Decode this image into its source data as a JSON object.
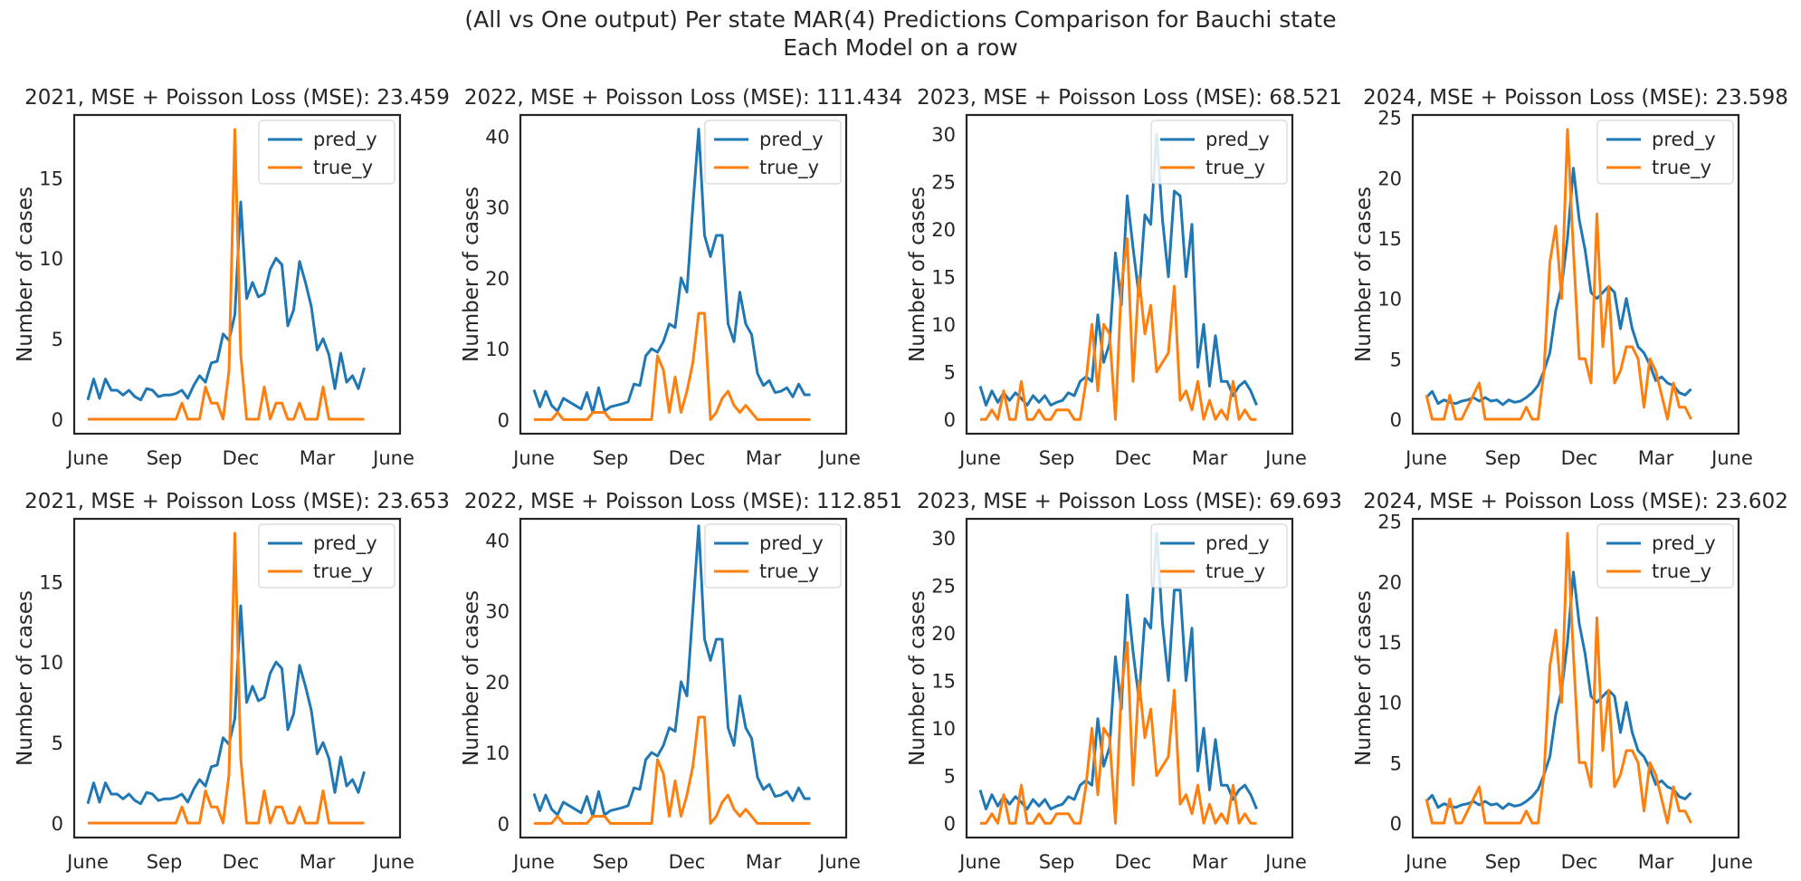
{
  "figure": {
    "suptitle_line1": "(All vs One output) Per state MAR(4) Predictions Comparison for Bauchi state",
    "suptitle_line2": "Each Model on a row"
  },
  "colors": {
    "pred": "#1f77b4",
    "true": "#ff7f0e",
    "axis": "#262626"
  },
  "chart_data": [
    {
      "type": "line",
      "title": "2021, MSE + Poisson Loss (MSE): 23.459",
      "ylabel": "Number of cases",
      "xticks": [
        "June",
        "Sep",
        "Dec",
        "Mar",
        "June"
      ],
      "yticks": [
        0,
        5,
        10,
        15
      ],
      "ylim": [
        -0.9,
        18.9
      ],
      "legend": "top-right",
      "series": [
        {
          "name": "pred_y",
          "values": [
            1.2,
            2.5,
            1.3,
            2.5,
            1.8,
            1.8,
            1.5,
            1.8,
            1.4,
            1.2,
            1.9,
            1.8,
            1.4,
            1.5,
            1.5,
            1.6,
            1.8,
            1.3,
            2.1,
            2.7,
            2.3,
            3.5,
            3.6,
            5.3,
            4.9,
            6.5,
            13.5,
            7.5,
            8.5,
            7.6,
            7.8,
            9.3,
            10.0,
            9.6,
            5.8,
            6.8,
            9.8,
            8.5,
            7.0,
            4.3,
            5.0,
            4.0,
            1.9,
            4.1,
            2.3,
            2.7,
            1.9,
            3.2
          ]
        },
        {
          "name": "true_y",
          "values": [
            0,
            0,
            0,
            0,
            0,
            0,
            0,
            0,
            0,
            0,
            0,
            0,
            0,
            0,
            0,
            0,
            1,
            0,
            0,
            0,
            2,
            1,
            1,
            0,
            3,
            18,
            4,
            0,
            0,
            0,
            2,
            0,
            1,
            1,
            0,
            0,
            1,
            0,
            0,
            0,
            2,
            0,
            0,
            0,
            0,
            0,
            0,
            0
          ]
        }
      ]
    },
    {
      "type": "line",
      "title": "2022, MSE + Poisson Loss (MSE): 111.434",
      "ylabel": "Number of cases",
      "xticks": [
        "June",
        "Sep",
        "Dec",
        "Mar",
        "June"
      ],
      "yticks": [
        0,
        10,
        20,
        30,
        40
      ],
      "ylim": [
        -2,
        43
      ],
      "legend": "top-right",
      "series": [
        {
          "name": "pred_y",
          "values": [
            4.2,
            1.8,
            4.0,
            2.0,
            1.2,
            3.0,
            2.5,
            2.0,
            1.5,
            3.8,
            1.0,
            4.5,
            1.2,
            1.8,
            2.0,
            2.2,
            2.5,
            5.0,
            4.8,
            9.0,
            10.0,
            9.5,
            11.0,
            13.5,
            13.0,
            20.0,
            18.0,
            30.0,
            41.0,
            26.0,
            23.0,
            26.0,
            26.0,
            13.5,
            11.0,
            18.0,
            13.5,
            12.0,
            6.5,
            4.8,
            5.5,
            3.8,
            4.0,
            4.5,
            3.2,
            5.0,
            3.5,
            3.5
          ]
        },
        {
          "name": "true_y",
          "values": [
            0,
            0,
            0,
            0,
            1,
            0,
            0,
            0,
            0,
            0,
            1,
            1,
            1,
            0,
            0,
            0,
            0,
            0,
            0,
            0,
            0,
            9,
            7,
            1,
            6,
            1,
            4,
            8,
            15,
            15,
            0,
            1,
            3,
            4,
            2,
            1,
            2,
            1,
            0,
            0,
            0,
            0,
            0,
            0,
            0,
            0,
            0,
            0
          ]
        }
      ]
    },
    {
      "type": "line",
      "title": "2023, MSE + Poisson Loss (MSE): 68.521",
      "ylabel": "Number of cases",
      "xticks": [
        "June",
        "Sep",
        "Dec",
        "Mar",
        "June"
      ],
      "yticks": [
        0,
        5,
        10,
        15,
        20,
        25,
        30
      ],
      "ylim": [
        -1.5,
        32
      ],
      "legend": "top-right",
      "series": [
        {
          "name": "pred_y",
          "values": [
            3.5,
            1.5,
            3.0,
            1.8,
            2.8,
            2.0,
            2.8,
            2.2,
            1.5,
            2.5,
            1.8,
            2.5,
            1.5,
            1.8,
            2.0,
            2.8,
            2.5,
            4.0,
            4.5,
            4.0,
            11.0,
            6.0,
            8.0,
            17.5,
            12.0,
            23.5,
            18.0,
            13.0,
            21.5,
            20.5,
            30.0,
            21.0,
            15.0,
            24.0,
            23.5,
            15.0,
            20.5,
            5.5,
            10.0,
            3.5,
            8.8,
            4.0,
            4.0,
            2.5,
            3.5,
            4.0,
            3.0,
            1.5
          ]
        },
        {
          "name": "true_y",
          "values": [
            0,
            0,
            1,
            0,
            3,
            0,
            0,
            4,
            0,
            0,
            1,
            0,
            0,
            1,
            1,
            1,
            0,
            0,
            4,
            10,
            3,
            10,
            9,
            0,
            14,
            19,
            4,
            15,
            9,
            12,
            5,
            6,
            7,
            14,
            2,
            3,
            1,
            4,
            0,
            2,
            0,
            1,
            0,
            4,
            0,
            1,
            0,
            0
          ]
        }
      ]
    },
    {
      "type": "line",
      "title": "2024, MSE + Poisson Loss (MSE): 23.598",
      "ylabel": "Number of cases",
      "xticks": [
        "June",
        "Sep",
        "Dec",
        "Mar",
        "June"
      ],
      "yticks": [
        0,
        5,
        10,
        15,
        20,
        25
      ],
      "ylim": [
        -1.2,
        25.2
      ],
      "legend": "top-right",
      "series": [
        {
          "name": "pred_y",
          "values": [
            1.8,
            2.3,
            1.3,
            1.6,
            1.4,
            1.3,
            1.5,
            1.6,
            1.8,
            1.5,
            1.8,
            1.5,
            1.6,
            1.2,
            1.6,
            1.4,
            1.5,
            1.8,
            2.2,
            2.8,
            4.0,
            5.5,
            9.0,
            11.0,
            15.0,
            20.8,
            16.5,
            14.0,
            10.5,
            10.0,
            10.5,
            11.0,
            10.5,
            7.5,
            10.0,
            7.5,
            6.0,
            5.5,
            4.5,
            3.2,
            3.5,
            3.0,
            2.8,
            2.2,
            2.0,
            2.5
          ]
        },
        {
          "name": "true_y",
          "values": [
            2,
            0,
            0,
            0,
            2,
            0,
            0,
            1,
            2,
            3,
            0,
            0,
            0,
            0,
            0,
            0,
            0,
            1,
            0,
            0,
            4,
            13,
            16,
            10,
            24,
            14,
            5,
            5,
            3,
            17,
            6,
            11,
            3,
            4,
            6,
            6,
            5,
            1,
            5,
            4,
            2,
            0,
            3,
            1,
            1,
            0
          ]
        }
      ]
    },
    {
      "type": "line",
      "title": "2021, MSE + Poisson Loss (MSE): 23.653",
      "ylabel": "Number of cases",
      "xticks": [
        "June",
        "Sep",
        "Dec",
        "Mar",
        "June"
      ],
      "yticks": [
        0,
        5,
        10,
        15
      ],
      "ylim": [
        -0.9,
        18.9
      ],
      "legend": "top-right",
      "series": [
        {
          "name": "pred_y",
          "values": [
            1.2,
            2.5,
            1.3,
            2.5,
            1.8,
            1.8,
            1.5,
            1.8,
            1.4,
            1.2,
            1.9,
            1.8,
            1.4,
            1.5,
            1.5,
            1.6,
            1.8,
            1.3,
            2.1,
            2.7,
            2.3,
            3.5,
            3.6,
            5.3,
            4.9,
            6.5,
            13.5,
            7.5,
            8.5,
            7.6,
            7.8,
            9.3,
            10.0,
            9.6,
            5.8,
            6.8,
            9.8,
            8.5,
            7.0,
            4.3,
            5.0,
            4.0,
            1.9,
            4.1,
            2.3,
            2.7,
            1.9,
            3.2
          ]
        },
        {
          "name": "true_y",
          "values": [
            0,
            0,
            0,
            0,
            0,
            0,
            0,
            0,
            0,
            0,
            0,
            0,
            0,
            0,
            0,
            0,
            1,
            0,
            0,
            0,
            2,
            1,
            1,
            0,
            3,
            18,
            4,
            0,
            0,
            0,
            2,
            0,
            1,
            1,
            0,
            0,
            1,
            0,
            0,
            0,
            2,
            0,
            0,
            0,
            0,
            0,
            0,
            0
          ]
        }
      ]
    },
    {
      "type": "line",
      "title": "2022, MSE + Poisson Loss (MSE): 112.851",
      "ylabel": "Number of cases",
      "xticks": [
        "June",
        "Sep",
        "Dec",
        "Mar",
        "June"
      ],
      "yticks": [
        0,
        10,
        20,
        30,
        40
      ],
      "ylim": [
        -2,
        43
      ],
      "legend": "top-right",
      "series": [
        {
          "name": "pred_y",
          "values": [
            4.2,
            1.8,
            4.0,
            2.0,
            1.2,
            3.0,
            2.5,
            2.0,
            1.5,
            3.8,
            1.0,
            4.5,
            1.2,
            1.8,
            2.0,
            2.2,
            2.5,
            5.0,
            4.8,
            9.0,
            10.0,
            9.5,
            11.0,
            13.5,
            13.0,
            20.0,
            18.0,
            30.0,
            42.0,
            26.0,
            23.0,
            26.0,
            26.0,
            13.5,
            11.0,
            18.0,
            13.5,
            12.0,
            6.5,
            4.8,
            5.5,
            3.8,
            4.0,
            4.5,
            3.2,
            5.0,
            3.5,
            3.5
          ]
        },
        {
          "name": "true_y",
          "values": [
            0,
            0,
            0,
            0,
            1,
            0,
            0,
            0,
            0,
            0,
            1,
            1,
            1,
            0,
            0,
            0,
            0,
            0,
            0,
            0,
            0,
            9,
            7,
            1,
            6,
            1,
            4,
            8,
            15,
            15,
            0,
            1,
            3,
            4,
            2,
            1,
            2,
            1,
            0,
            0,
            0,
            0,
            0,
            0,
            0,
            0,
            0,
            0
          ]
        }
      ]
    },
    {
      "type": "line",
      "title": "2023, MSE + Poisson Loss (MSE): 69.693",
      "ylabel": "Number of cases",
      "xticks": [
        "June",
        "Sep",
        "Dec",
        "Mar",
        "June"
      ],
      "yticks": [
        0,
        5,
        10,
        15,
        20,
        25,
        30
      ],
      "ylim": [
        -1.5,
        32
      ],
      "legend": "top-right",
      "series": [
        {
          "name": "pred_y",
          "values": [
            3.5,
            1.5,
            3.0,
            1.8,
            2.8,
            2.0,
            2.8,
            2.2,
            1.5,
            2.5,
            1.8,
            2.5,
            1.5,
            1.8,
            2.0,
            2.8,
            2.5,
            4.0,
            4.5,
            4.0,
            11.0,
            6.0,
            8.0,
            17.5,
            12.0,
            24.0,
            18.0,
            13.0,
            21.5,
            20.5,
            30.5,
            21.0,
            15.0,
            24.5,
            24.5,
            15.0,
            20.5,
            5.5,
            10.0,
            3.5,
            8.8,
            4.0,
            4.0,
            2.5,
            3.5,
            4.0,
            3.0,
            1.5
          ]
        },
        {
          "name": "true_y",
          "values": [
            0,
            0,
            1,
            0,
            3,
            0,
            0,
            4,
            0,
            0,
            1,
            0,
            0,
            1,
            1,
            1,
            0,
            0,
            4,
            10,
            3,
            10,
            9,
            0,
            14,
            19,
            4,
            15,
            9,
            12,
            5,
            6,
            7,
            14,
            2,
            3,
            1,
            4,
            0,
            2,
            0,
            1,
            0,
            4,
            0,
            1,
            0,
            0
          ]
        }
      ]
    },
    {
      "type": "line",
      "title": "2024, MSE + Poisson Loss (MSE): 23.602",
      "ylabel": "Number of cases",
      "xticks": [
        "June",
        "Sep",
        "Dec",
        "Mar",
        "June"
      ],
      "yticks": [
        0,
        5,
        10,
        15,
        20,
        25
      ],
      "ylim": [
        -1.2,
        25.2
      ],
      "legend": "top-right",
      "series": [
        {
          "name": "pred_y",
          "values": [
            1.8,
            2.3,
            1.3,
            1.6,
            1.4,
            1.3,
            1.5,
            1.6,
            1.8,
            1.5,
            1.8,
            1.5,
            1.6,
            1.2,
            1.6,
            1.4,
            1.5,
            1.8,
            2.2,
            2.8,
            4.0,
            5.5,
            9.0,
            11.0,
            15.0,
            20.8,
            16.5,
            14.0,
            10.5,
            10.0,
            10.5,
            11.0,
            10.5,
            7.5,
            10.0,
            7.5,
            6.0,
            5.5,
            4.5,
            3.2,
            3.5,
            3.0,
            2.8,
            2.2,
            2.0,
            2.5
          ]
        },
        {
          "name": "true_y",
          "values": [
            2,
            0,
            0,
            0,
            2,
            0,
            0,
            1,
            2,
            3,
            0,
            0,
            0,
            0,
            0,
            0,
            0,
            1,
            0,
            0,
            4,
            13,
            16,
            10,
            24,
            14,
            5,
            5,
            3,
            17,
            6,
            11,
            3,
            4,
            6,
            6,
            5,
            1,
            5,
            4,
            2,
            0,
            3,
            1,
            1,
            0
          ]
        }
      ]
    }
  ]
}
